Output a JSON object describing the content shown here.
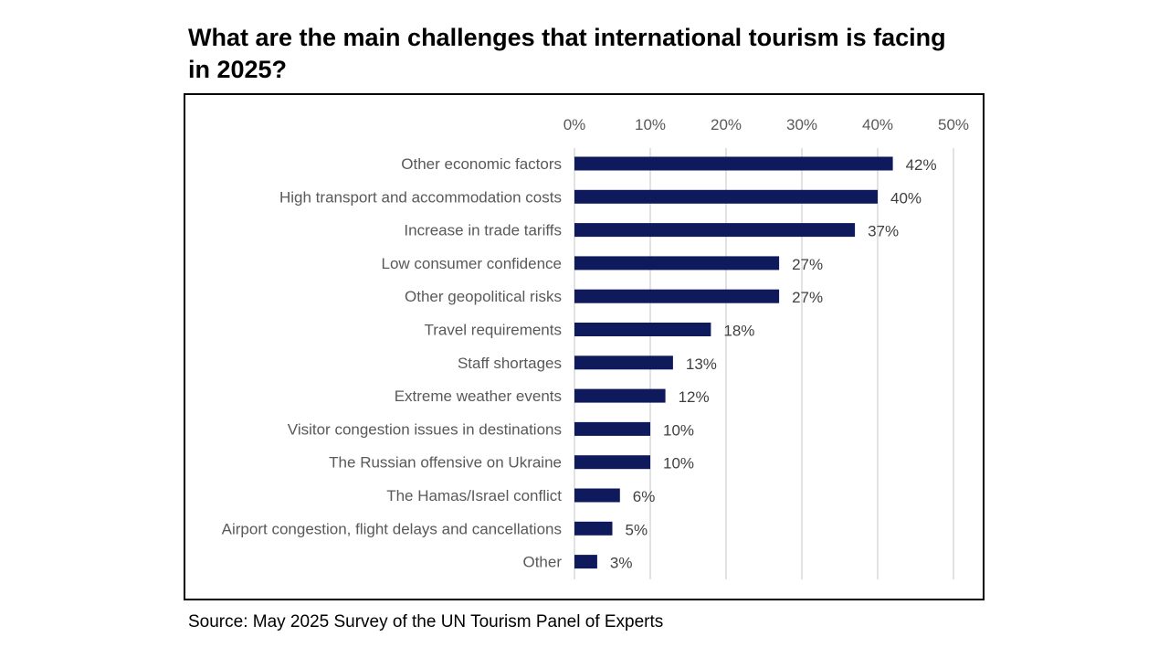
{
  "chart_data": {
    "type": "bar",
    "orientation": "horizontal",
    "title": "What are the main challenges that international tourism is facing in 2025?",
    "source": "Source: May 2025 Survey of the UN Tourism Panel of Experts",
    "categories": [
      "Other economic factors",
      "High transport and accommodation costs",
      "Increase in trade tariffs",
      "Low consumer confidence",
      "Other geopolitical risks",
      "Travel requirements",
      "Staff shortages",
      "Extreme weather events",
      "Visitor congestion issues in destinations",
      "The Russian offensive on Ukraine",
      "The Hamas/Israel conflict",
      "Airport congestion, flight delays and cancellations",
      "Other"
    ],
    "values": [
      42,
      40,
      37,
      27,
      27,
      18,
      13,
      12,
      10,
      10,
      6,
      5,
      3
    ],
    "value_labels": [
      "42%",
      "40%",
      "37%",
      "27%",
      "27%",
      "18%",
      "13%",
      "12%",
      "10%",
      "10%",
      "6%",
      "5%",
      "3%"
    ],
    "xlim": [
      0,
      50
    ],
    "xticks": [
      0,
      10,
      20,
      30,
      40,
      50
    ],
    "xtick_labels": [
      "0%",
      "10%",
      "20%",
      "30%",
      "40%",
      "50%"
    ],
    "xaxis_position": "top",
    "grid": true,
    "bar_color": "#0f1a5c",
    "grid_color": "#d9d9d9"
  }
}
